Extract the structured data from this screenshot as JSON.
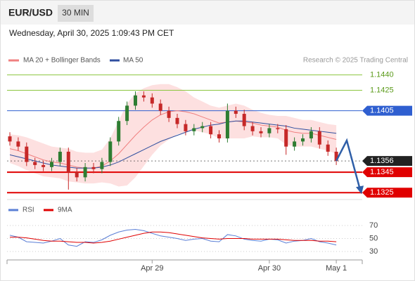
{
  "chart_data": {
    "type": "candlestick",
    "title": "EUR/USD",
    "timeframe": "30 MIN",
    "subtitle": "Wednesday, April 30, 2025 1:09:43 PM CET",
    "source": "Research © 2025 Trading Central",
    "categories": [
      null,
      null,
      null,
      null,
      null,
      null,
      null,
      null,
      null,
      null,
      null,
      null,
      null,
      null,
      null,
      null,
      null,
      "Apr 29",
      null,
      null,
      null,
      null,
      null,
      null,
      null,
      null,
      null,
      null,
      null,
      null,
      null,
      "Apr 30",
      null,
      null,
      null,
      null,
      null,
      null,
      null,
      "May 1"
    ],
    "open": [
      1.138,
      1.1375,
      1.137,
      1.1355,
      1.1352,
      1.135,
      1.1355,
      1.1365,
      1.1345,
      1.134,
      1.135,
      1.1348,
      1.1355,
      1.1375,
      1.1395,
      1.141,
      1.142,
      1.1418,
      1.1412,
      1.1405,
      1.1398,
      1.1392,
      1.1385,
      1.1388,
      1.139,
      1.1382,
      1.1378,
      1.1405,
      1.1402,
      1.139,
      1.1385,
      1.1383,
      1.1388,
      1.1387,
      1.137,
      1.1375,
      1.1378,
      1.1385,
      1.1372,
      1.1365
    ],
    "high": [
      1.1384,
      1.1379,
      1.1374,
      1.1359,
      1.1356,
      1.1359,
      1.1369,
      1.1369,
      1.1349,
      1.1354,
      1.1354,
      1.1359,
      1.1379,
      1.1399,
      1.1414,
      1.1424,
      1.1424,
      1.1422,
      1.1416,
      1.1409,
      1.1402,
      1.1396,
      1.1392,
      1.1394,
      1.1394,
      1.1386,
      1.1412,
      1.1409,
      1.1406,
      1.1394,
      1.1389,
      1.1392,
      1.1392,
      1.1391,
      1.1379,
      1.1382,
      1.1389,
      1.1389,
      1.1376,
      1.1369
    ],
    "low": [
      1.1371,
      1.1366,
      1.1351,
      1.1348,
      1.1346,
      1.1346,
      1.1351,
      1.1328,
      1.1336,
      1.1336,
      1.1344,
      1.1344,
      1.1351,
      1.1371,
      1.1391,
      1.1406,
      1.1414,
      1.1408,
      1.1401,
      1.1394,
      1.1388,
      1.1381,
      1.1381,
      1.1384,
      1.1378,
      1.1374,
      1.1374,
      1.1398,
      1.1386,
      1.1381,
      1.1379,
      1.1379,
      1.1383,
      1.1362,
      1.1366,
      1.1371,
      1.1374,
      1.1368,
      1.1361,
      1.1352
    ],
    "close": [
      1.1375,
      1.137,
      1.1355,
      1.1352,
      1.135,
      1.1355,
      1.1365,
      1.1345,
      1.134,
      1.135,
      1.1348,
      1.1355,
      1.1375,
      1.1395,
      1.141,
      1.142,
      1.1418,
      1.1412,
      1.1405,
      1.1398,
      1.1392,
      1.1385,
      1.1388,
      1.139,
      1.1382,
      1.1378,
      1.1405,
      1.1402,
      1.139,
      1.1385,
      1.1383,
      1.1388,
      1.1387,
      1.137,
      1.1375,
      1.1378,
      1.1385,
      1.1372,
      1.1365,
      1.1356
    ],
    "up_color": "#2e7d32",
    "down_color": "#c62828",
    "ylim": [
      1.1319,
      1.1448
    ],
    "levels": [
      {
        "value": 1.144,
        "label": "1.1440",
        "color": "#8cc63f",
        "boxed": false
      },
      {
        "value": 1.1425,
        "color": "#8cc63f",
        "boxed": false
      },
      {
        "value": 1.1405,
        "color": "#2f5fd0",
        "boxed": true
      },
      {
        "value": 1.1356,
        "color": "#222222",
        "boxed": true
      },
      {
        "value": 1.1345,
        "color": "#e00000",
        "boxed": true
      },
      {
        "value": 1.1325,
        "color": "#e00000",
        "boxed": true
      }
    ],
    "overlays": [
      {
        "name": "MA 20 + Bollinger Bands",
        "color": "#f08080",
        "band_color": "#fde0e0",
        "values": [
          1.1368,
          1.1366,
          1.1363,
          1.136,
          1.1357,
          1.1355,
          1.1354,
          1.1352,
          1.135,
          1.1349,
          1.1349,
          1.1351,
          1.1356,
          1.1363,
          1.1372,
          1.1381,
          1.1389,
          1.1396,
          1.1401,
          1.1404,
          1.1405,
          1.1404,
          1.1402,
          1.1399,
          1.1396,
          1.1393,
          1.1394,
          1.1395,
          1.1394,
          1.1393,
          1.1391,
          1.139,
          1.1389,
          1.1386,
          1.1384,
          1.1383,
          1.1383,
          1.1381,
          1.1379,
          1.1377
        ],
        "upper": [
          1.1382,
          1.1381,
          1.1379,
          1.1376,
          1.1373,
          1.137,
          1.1369,
          1.1368,
          1.1365,
          1.1364,
          1.1364,
          1.1367,
          1.1378,
          1.1395,
          1.1412,
          1.1422,
          1.1427,
          1.143,
          1.1431,
          1.1431,
          1.1428,
          1.1424,
          1.1418,
          1.1414,
          1.141,
          1.1408,
          1.141,
          1.1412,
          1.141,
          1.1406,
          1.1403,
          1.1401,
          1.14,
          1.14,
          1.1398,
          1.1396,
          1.1396,
          1.1394,
          1.1392,
          1.1391
        ],
        "lower": [
          1.1354,
          1.1351,
          1.1347,
          1.1344,
          1.1341,
          1.134,
          1.1339,
          1.1336,
          1.1335,
          1.1334,
          1.1334,
          1.1335,
          1.1334,
          1.1331,
          1.1332,
          1.134,
          1.1351,
          1.1362,
          1.1371,
          1.1377,
          1.1382,
          1.1384,
          1.1386,
          1.1384,
          1.1382,
          1.1378,
          1.1378,
          1.1378,
          1.1378,
          1.138,
          1.1379,
          1.1379,
          1.1378,
          1.1372,
          1.137,
          1.137,
          1.137,
          1.1368,
          1.1366,
          1.1363
        ]
      },
      {
        "name": "MA 50",
        "color": "#2f4f9f",
        "values": [
          1.1362,
          1.136,
          1.1358,
          1.1356,
          1.1354,
          1.1352,
          1.1351,
          1.135,
          1.1349,
          1.1349,
          1.1349,
          1.135,
          1.1352,
          1.1355,
          1.1359,
          1.1363,
          1.1367,
          1.1371,
          1.1375,
          1.1378,
          1.1381,
          1.1384,
          1.1387,
          1.1389,
          1.1391,
          1.1392,
          1.1394,
          1.1395,
          1.1395,
          1.1394,
          1.1393,
          1.1392,
          1.1391,
          1.139,
          1.1388,
          1.1387,
          1.1386,
          1.1385,
          1.1384,
          1.1383
        ]
      }
    ],
    "rsi": {
      "ylim": [
        20,
        80
      ],
      "yticks": [
        70,
        50,
        30
      ],
      "series": [
        {
          "name": "RSI",
          "color": "#5b7fd6",
          "values": [
            55,
            52,
            45,
            44,
            43,
            46,
            50,
            40,
            38,
            45,
            44,
            48,
            55,
            60,
            63,
            64,
            62,
            58,
            54,
            52,
            50,
            47,
            49,
            50,
            46,
            45,
            56,
            54,
            49,
            47,
            46,
            49,
            48,
            43,
            46,
            47,
            50,
            45,
            43,
            40
          ]
        },
        {
          "name": "9MA",
          "color": "#e00000",
          "values": [
            52,
            52,
            51,
            49,
            47,
            46,
            46,
            45,
            44,
            44,
            43,
            44,
            46,
            49,
            52,
            55,
            58,
            60,
            60,
            59,
            57,
            55,
            53,
            51,
            50,
            49,
            50,
            50,
            50,
            49,
            49,
            49,
            49,
            48,
            47,
            47,
            47,
            46,
            46,
            45
          ]
        }
      ]
    }
  }
}
